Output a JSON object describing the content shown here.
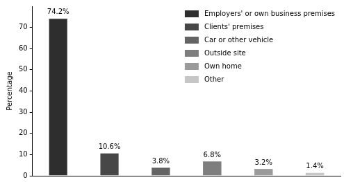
{
  "chart_data": {
    "type": "bar",
    "ylabel": "Percentage",
    "categories": [
      "Employers' or own business premises",
      "Clients' premises",
      "Car or other vehicle",
      "Outside site",
      "Own home",
      "Other"
    ],
    "values": [
      74.2,
      10.6,
      3.8,
      6.8,
      3.2,
      1.4
    ],
    "value_labels": [
      "74.2%",
      "10.6%",
      "3.8%",
      "6.8%",
      "3.2%",
      "1.4%"
    ],
    "colors": [
      "#2e2e2e",
      "#474747",
      "#646464",
      "#7e7e7e",
      "#9a9a9a",
      "#c6c6c6"
    ],
    "ylim": [
      0,
      80
    ],
    "yticks": [
      0,
      10,
      20,
      30,
      40,
      50,
      60,
      70
    ],
    "grid": false,
    "legend": "upper right",
    "data_labels": true,
    "tick_labels": "y"
  }
}
